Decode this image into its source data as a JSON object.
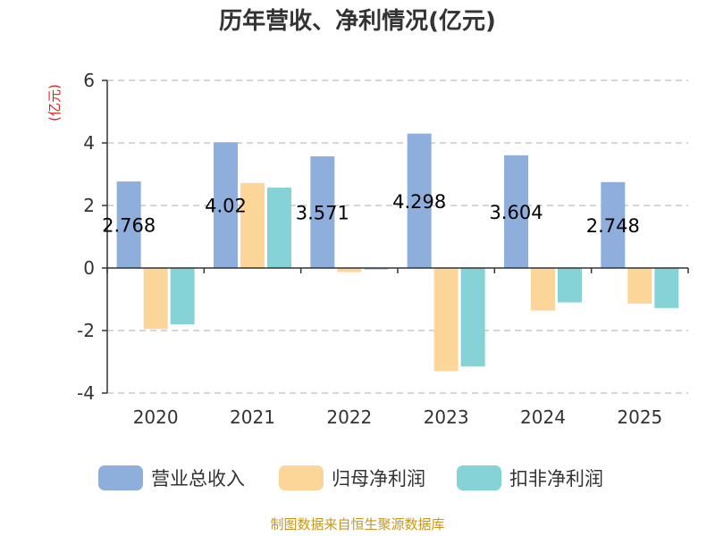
{
  "chart_data": {
    "type": "bar",
    "title": "历年营收、净利情况(亿元)",
    "unit_label": "(亿元)",
    "categories": [
      "2020",
      "2021",
      "2022",
      "2023",
      "2024",
      "2025"
    ],
    "series": [
      {
        "name": "营业总收入",
        "color": "#8eaedb",
        "values": [
          2.768,
          4.02,
          3.571,
          4.298,
          3.604,
          2.748
        ]
      },
      {
        "name": "归母净利润",
        "color": "#fcd698",
        "values": [
          -1.95,
          2.72,
          -0.13,
          -3.3,
          -1.36,
          -1.14
        ]
      },
      {
        "name": "扣非净利润",
        "color": "#85d3d6",
        "values": [
          -1.8,
          2.57,
          -0.05,
          -3.15,
          -1.1,
          -1.28
        ]
      }
    ],
    "data_labels": [
      "2.768",
      "4.02",
      "3.571",
      "4.298",
      "3.604",
      "2.748"
    ],
    "y_ticks": [
      "-4",
      "-2",
      "0",
      "2",
      "4",
      "6"
    ],
    "ylim": [
      -4,
      6
    ],
    "grid": true,
    "legend": "bottom",
    "source": "制图数据来自恒生聚源数据库"
  }
}
